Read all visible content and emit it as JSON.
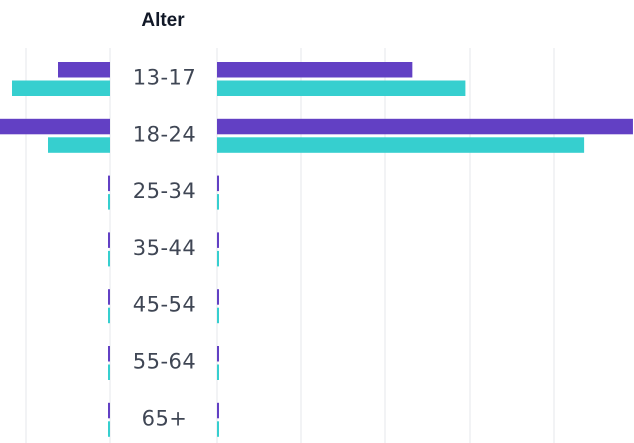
{
  "chart_data": {
    "type": "bar",
    "orientation": "horizontal-butterfly",
    "title": "Alter",
    "categories": [
      "13-17",
      "18-24",
      "25-34",
      "35-44",
      "45-54",
      "55-64",
      "65+"
    ],
    "series": [
      {
        "color": "#6240c4",
        "left_values": [
          0.52,
          1.17,
          0,
          0,
          0,
          0,
          0
        ],
        "right_values": [
          2.32,
          4.94,
          0,
          0,
          0,
          0,
          0
        ]
      },
      {
        "color": "#36cfcf",
        "left_values": [
          0.98,
          0.62,
          0,
          0,
          0,
          0,
          0
        ],
        "right_values": [
          2.95,
          4.36,
          0,
          0,
          0,
          0,
          0
        ]
      }
    ],
    "left_xlim": [
      0,
      1.2
    ],
    "right_xlim": [
      0,
      5
    ],
    "grid": true,
    "legend": "none"
  }
}
